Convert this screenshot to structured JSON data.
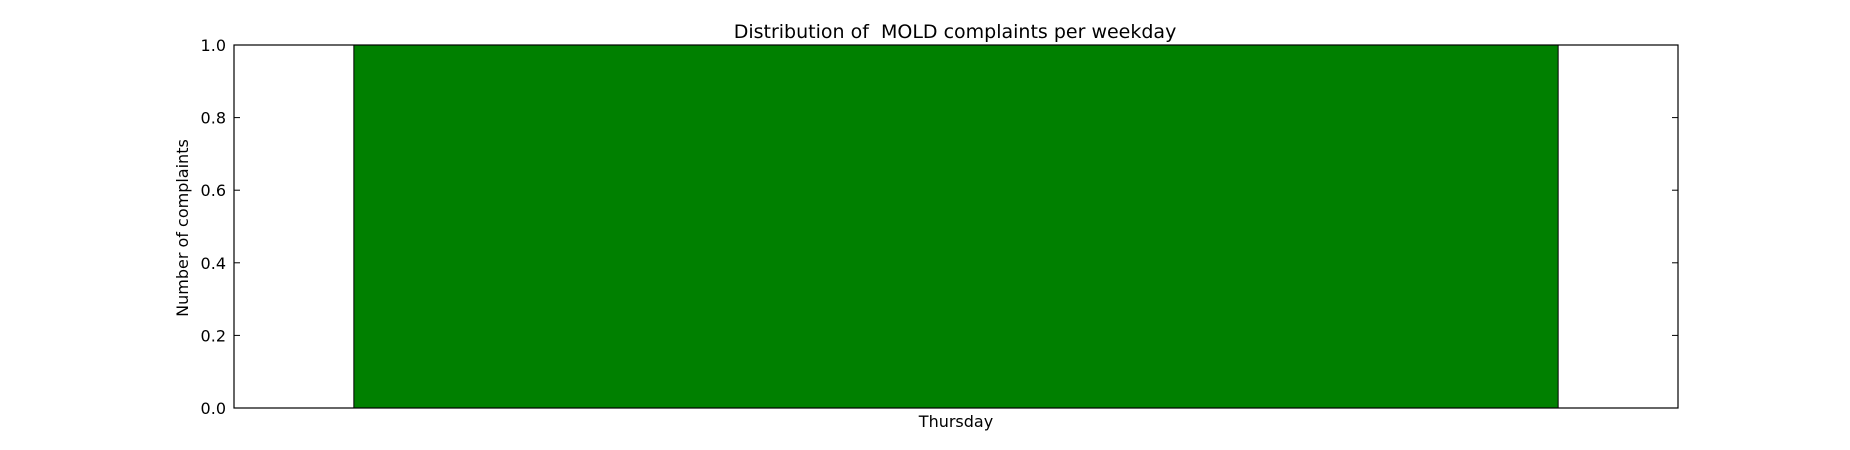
{
  "chart_data": {
    "type": "bar",
    "title": "Distribution of  MOLD complaints per weekday",
    "xlabel": "",
    "ylabel": "Number of complaints",
    "categories": [
      "Thursday"
    ],
    "values": [
      1.0
    ],
    "ylim": [
      0.0,
      1.0
    ],
    "yticks": [
      "0.0",
      "0.2",
      "0.4",
      "0.6",
      "0.8",
      "1.0"
    ],
    "grid": false,
    "legend": "none",
    "bar_color": "#008000"
  }
}
